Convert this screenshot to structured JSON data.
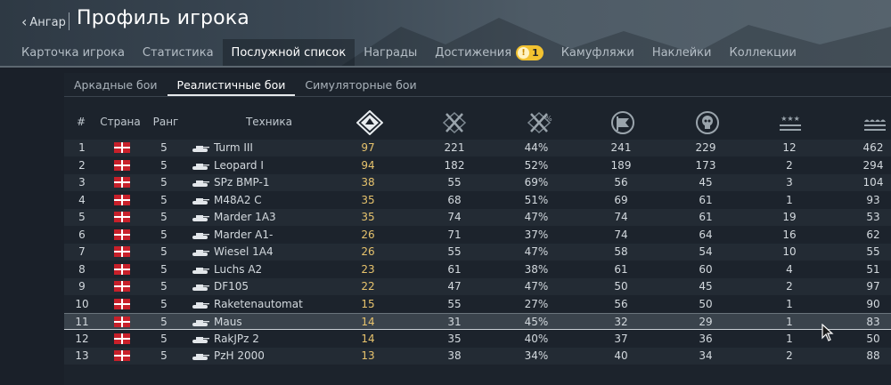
{
  "header": {
    "back_label": "Ангар",
    "title": "Профиль игрока",
    "tabs": [
      {
        "label": "Карточка игрока"
      },
      {
        "label": "Статистика"
      },
      {
        "label": "Послужной список"
      },
      {
        "label": "Награды"
      },
      {
        "label": "Достижения",
        "badge": "1"
      },
      {
        "label": "Камуфляжи"
      },
      {
        "label": "Наклейки"
      },
      {
        "label": "Коллекции"
      }
    ],
    "active_tab": 2
  },
  "modes": {
    "tabs": [
      {
        "label": "Аркадные бои"
      },
      {
        "label": "Реалистичные бои"
      },
      {
        "label": "Симуляторные бои"
      }
    ],
    "active": 1
  },
  "table": {
    "headers": {
      "num": "#",
      "country": "Страна",
      "rank": "Ранг",
      "vehicle": "Техника"
    },
    "icon_columns": [
      "battles-icon",
      "victories-icon",
      "win-rate-icon",
      "respawns-icon",
      "deaths-icon",
      "air-kills-icon",
      "ground-kills-icon"
    ],
    "rows": [
      {
        "num": "1",
        "rank": "5",
        "vehicle": "Turm III",
        "battles": "97",
        "victories": "221",
        "rate": "44%",
        "respawns": "241",
        "deaths": "229",
        "air": "12",
        "ground": "462"
      },
      {
        "num": "2",
        "rank": "5",
        "vehicle": "Leopard I",
        "battles": "94",
        "victories": "182",
        "rate": "52%",
        "respawns": "189",
        "deaths": "173",
        "air": "2",
        "ground": "294"
      },
      {
        "num": "3",
        "rank": "5",
        "vehicle": "SPz BMP-1",
        "battles": "38",
        "victories": "55",
        "rate": "69%",
        "respawns": "56",
        "deaths": "45",
        "air": "3",
        "ground": "104"
      },
      {
        "num": "4",
        "rank": "5",
        "vehicle": "M48A2 C",
        "battles": "35",
        "victories": "68",
        "rate": "51%",
        "respawns": "69",
        "deaths": "61",
        "air": "1",
        "ground": "93"
      },
      {
        "num": "5",
        "rank": "5",
        "vehicle": "Marder 1A3",
        "battles": "35",
        "victories": "74",
        "rate": "47%",
        "respawns": "74",
        "deaths": "61",
        "air": "19",
        "ground": "53"
      },
      {
        "num": "6",
        "rank": "5",
        "vehicle": "Marder A1-",
        "battles": "26",
        "victories": "71",
        "rate": "37%",
        "respawns": "74",
        "deaths": "64",
        "air": "16",
        "ground": "62"
      },
      {
        "num": "7",
        "rank": "5",
        "vehicle": "Wiesel 1A4",
        "battles": "26",
        "victories": "55",
        "rate": "47%",
        "respawns": "58",
        "deaths": "54",
        "air": "10",
        "ground": "55"
      },
      {
        "num": "8",
        "rank": "5",
        "vehicle": "Luchs A2",
        "battles": "23",
        "victories": "61",
        "rate": "38%",
        "respawns": "61",
        "deaths": "60",
        "air": "4",
        "ground": "51"
      },
      {
        "num": "9",
        "rank": "5",
        "vehicle": "DF105",
        "battles": "22",
        "victories": "47",
        "rate": "47%",
        "respawns": "50",
        "deaths": "45",
        "air": "2",
        "ground": "97"
      },
      {
        "num": "10",
        "rank": "5",
        "vehicle": "Raketenautomat",
        "battles": "15",
        "victories": "55",
        "rate": "27%",
        "respawns": "56",
        "deaths": "50",
        "air": "1",
        "ground": "90"
      },
      {
        "num": "11",
        "rank": "5",
        "vehicle": "Maus",
        "battles": "14",
        "victories": "31",
        "rate": "45%",
        "respawns": "32",
        "deaths": "29",
        "air": "1",
        "ground": "83"
      },
      {
        "num": "12",
        "rank": "5",
        "vehicle": "RakJPz 2",
        "battles": "14",
        "victories": "35",
        "rate": "40%",
        "respawns": "37",
        "deaths": "36",
        "air": "1",
        "ground": "50"
      },
      {
        "num": "13",
        "rank": "5",
        "vehicle": "PzH 2000",
        "battles": "13",
        "victories": "38",
        "rate": "34%",
        "respawns": "40",
        "deaths": "34",
        "air": "2",
        "ground": "88"
      }
    ],
    "selected_row": 10
  },
  "colors": {
    "accent_gold": "#e7c36d",
    "badge_yellow": "#f2c230",
    "flag_red": "#c8202a"
  }
}
